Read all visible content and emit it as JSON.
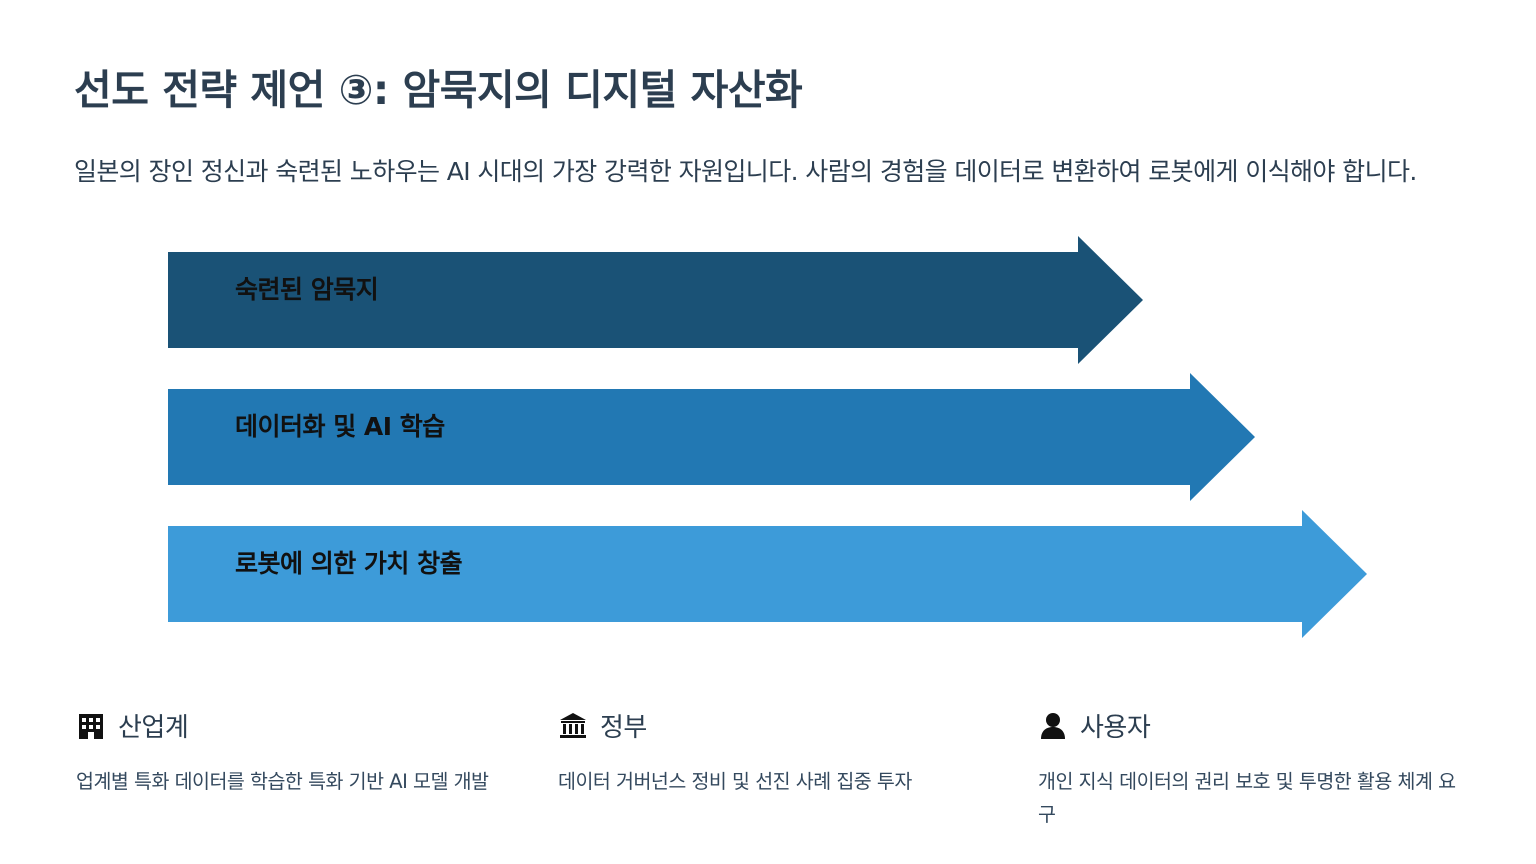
{
  "title": "선도 전략 제언 ③: 암묵지의 디지털 자산화",
  "subtitle": "일본의 장인 정신과 숙련된 노하우는 AI 시대의 가장 강력한 자원입니다. 사람의 경험을 데이터로 변환하여 로봇에게 이식해야 합니다.",
  "flow": [
    {
      "label": "숙련된 암묵지",
      "color": "#1a5276"
    },
    {
      "label": "데이터화 및 AI 학습",
      "color": "#2278b3"
    },
    {
      "label": "로봇에 의한 가치 창출",
      "color": "#3d9bd9"
    }
  ],
  "stakeholders": [
    {
      "icon": "building-icon",
      "title": "산업계",
      "text": "업계별 특화 데이터를 학습한 특화 기반 AI 모델 개발"
    },
    {
      "icon": "bank-icon",
      "title": "정부",
      "text": "데이터 거버넌스 정비 및 선진 사례 집중 투자"
    },
    {
      "icon": "user-icon",
      "title": "사용자",
      "text": "개인 지식 데이터의 권리 보호 및 투명한 활용 체계 요구"
    }
  ]
}
